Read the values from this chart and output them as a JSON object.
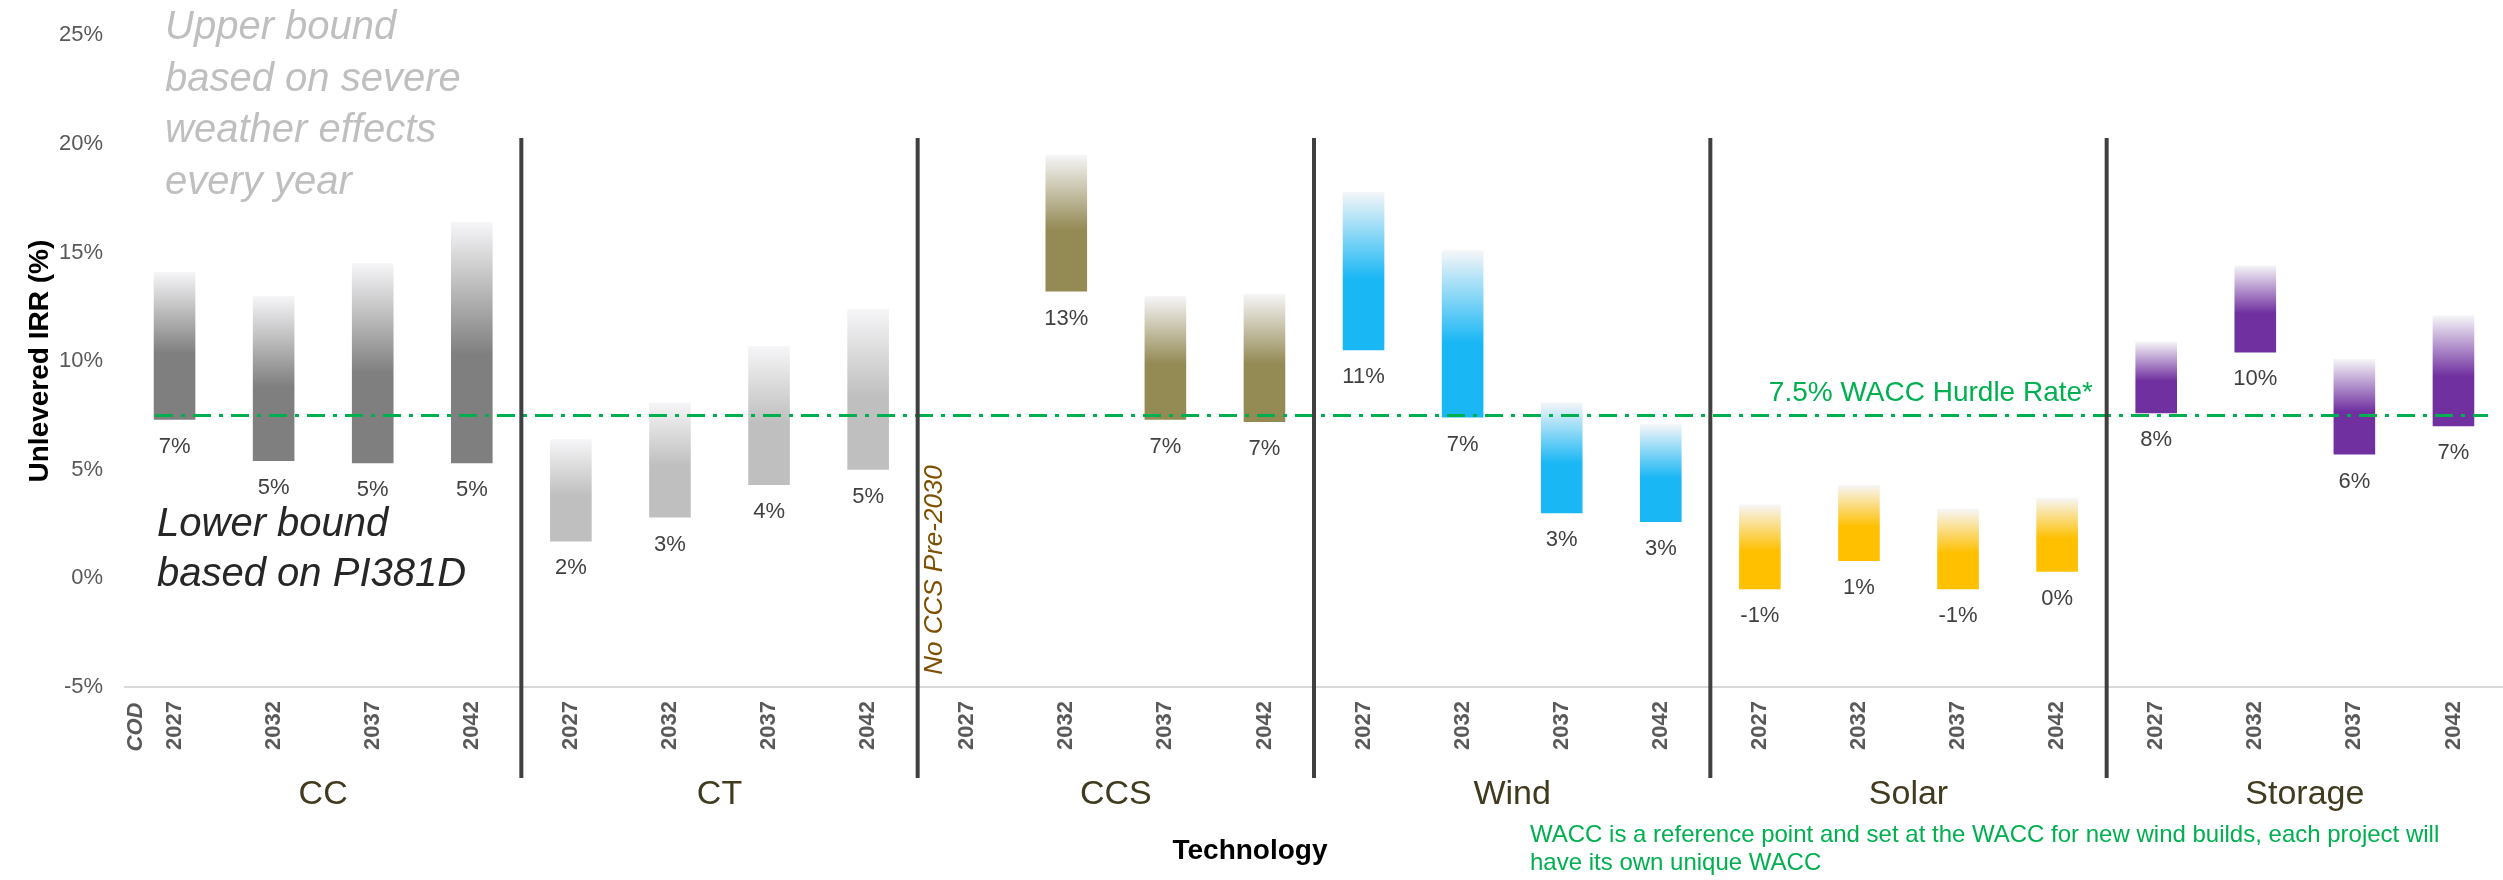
{
  "chart_data": {
    "type": "bar",
    "xlabel": "Technology",
    "ylabel": "Unlevered IRR (%)",
    "categories": [
      "2027",
      "2032",
      "2037",
      "2042",
      "2027",
      "2032",
      "2037",
      "2042",
      "2027",
      "2032",
      "2037",
      "2042",
      "2027",
      "2032",
      "2037",
      "2042",
      "2027",
      "2032",
      "2037",
      "2042",
      "2027",
      "2032",
      "2037",
      "2042"
    ],
    "base": [
      7.3,
      5.4,
      5.3,
      5.3,
      1.7,
      2.8,
      4.3,
      5.0,
      null,
      13.2,
      7.3,
      7.2,
      10.5,
      7.4,
      3.0,
      2.6,
      -0.5,
      0.8,
      -0.5,
      0.3,
      7.6,
      10.4,
      5.7,
      7.0
    ],
    "values": [
      6.8,
      7.6,
      9.2,
      11.1,
      4.7,
      5.3,
      6.4,
      7.4,
      null,
      6.3,
      5.7,
      5.9,
      7.3,
      7.7,
      5.1,
      4.5,
      3.9,
      3.5,
      3.7,
      3.4,
      3.3,
      4.0,
      4.4,
      5.1
    ],
    "colors": [
      "#7f7f7f",
      "#7f7f7f",
      "#7f7f7f",
      "#7f7f7f",
      "#bfbfbf",
      "#bfbfbf",
      "#bfbfbf",
      "#bfbfbf",
      "#948a54",
      "#948a54",
      "#948a54",
      "#948a54",
      "#1ab7f5",
      "#1ab7f5",
      "#1ab7f5",
      "#1ab7f5",
      "#ffc000",
      "#ffc000",
      "#ffc000",
      "#ffc000",
      "#7030a0",
      "#7030a0",
      "#7030a0",
      "#7030a0"
    ],
    "ylim": [
      -5,
      25
    ],
    "yticks": [
      {
        "value": -5,
        "label": "-5%"
      },
      {
        "value": 0,
        "label": "0%"
      },
      {
        "value": 5,
        "label": "5%"
      },
      {
        "value": 10,
        "label": "10%"
      },
      {
        "value": 15,
        "label": "15%"
      },
      {
        "value": 20,
        "label": "20%"
      },
      {
        "value": 25,
        "label": "25%"
      }
    ],
    "ref_lines": [
      {
        "axis": "y",
        "value": 7.5,
        "label": "7.5% WACC Hurdle Rate*",
        "color": "#00b050",
        "line_style": "dashed"
      }
    ],
    "annotations": [
      "CC",
      "CT",
      "CCS",
      "Wind",
      "Solar",
      "Storage",
      "Upper bound based on severe weather effects every year",
      "Lower bound based on PI381D",
      "No CCS Pre-2030",
      "COD",
      "7%",
      "5%",
      "5%",
      "5%",
      "2%",
      "3%",
      "4%",
      "5%",
      "13%",
      "7%",
      "7%",
      "11%",
      "7%",
      "3%",
      "3%",
      "-1%",
      "1%",
      "-1%",
      "0%",
      "8%",
      "10%",
      "6%",
      "7%",
      "WACC is a reference point and set at the WACC for new wind builds, each project will have its own unique WACC"
    ]
  }
}
